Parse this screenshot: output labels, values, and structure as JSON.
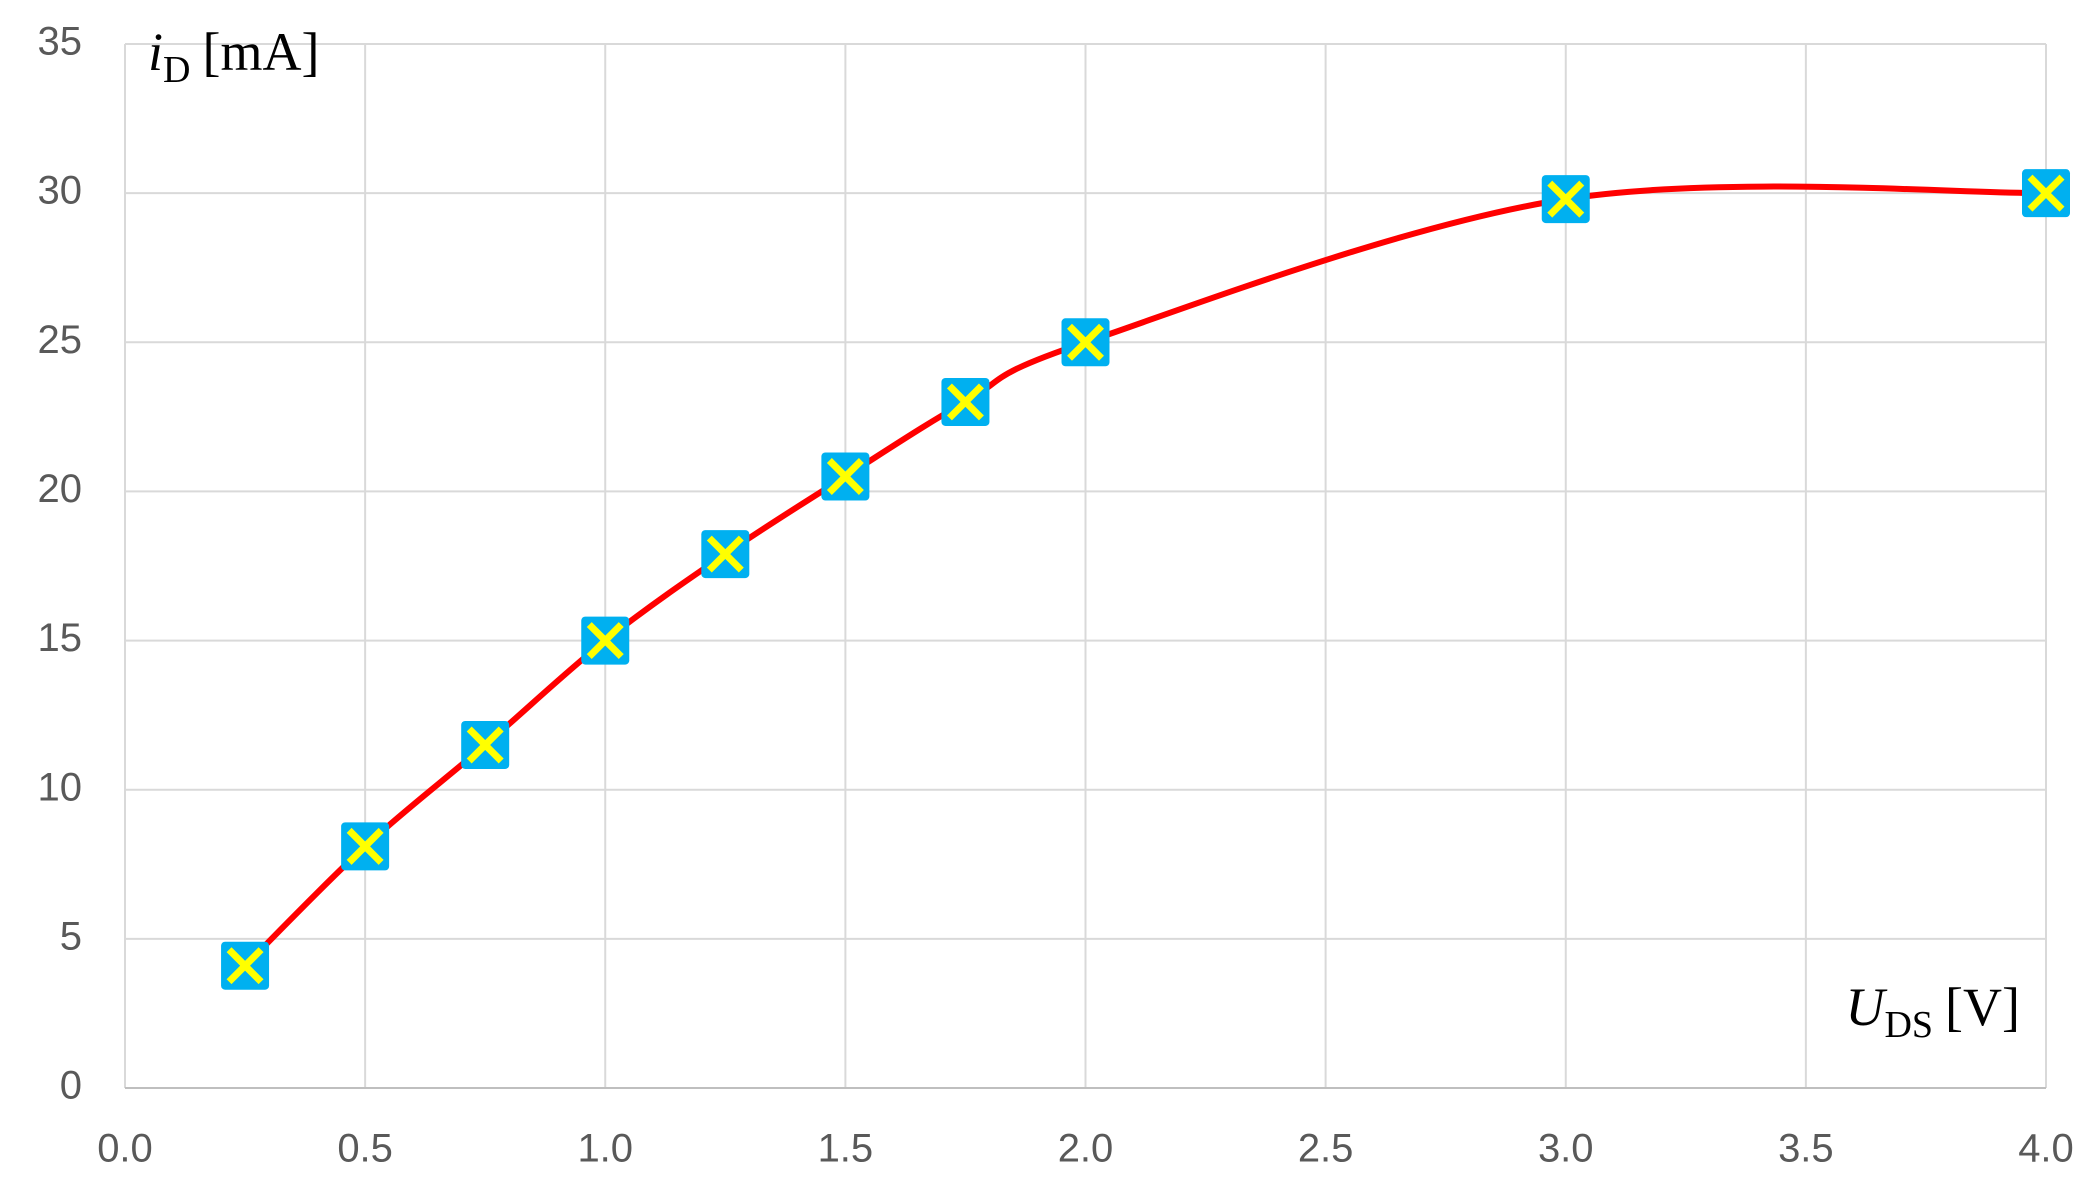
{
  "chart_data": {
    "type": "scatter",
    "x_label": {
      "symbol": "U",
      "subscript": "DS",
      "unit": "[V]"
    },
    "y_label": {
      "symbol": "i",
      "subscript": "D",
      "unit": "[mA]"
    },
    "x": [
      0.25,
      0.5,
      0.75,
      1.0,
      1.25,
      1.5,
      1.75,
      2.0,
      3.0,
      4.0
    ],
    "series": [
      {
        "color": "#ff0000",
        "marker_fill": "#00b0f0",
        "marker_cross": "#ffff00",
        "smooth": true,
        "values": [
          4.1,
          8.1,
          11.5,
          15.0,
          17.9,
          20.5,
          23.0,
          25.0,
          29.8,
          30.0
        ]
      }
    ],
    "xlim": [
      0,
      4
    ],
    "xticks": [
      {
        "value": 0,
        "label": "0.0"
      },
      {
        "value": 0.5,
        "label": "0.5"
      },
      {
        "value": 1,
        "label": "1.0"
      },
      {
        "value": 1.5,
        "label": "1.5"
      },
      {
        "value": 2,
        "label": "2.0"
      },
      {
        "value": 2.5,
        "label": "2.5"
      },
      {
        "value": 3,
        "label": "3.0"
      },
      {
        "value": 3.5,
        "label": "3.5"
      },
      {
        "value": 4,
        "label": "4.0"
      }
    ],
    "ylim": [
      0,
      35
    ],
    "yticks": [
      0,
      5,
      10,
      15,
      20,
      25,
      30,
      35
    ],
    "grid": true
  }
}
